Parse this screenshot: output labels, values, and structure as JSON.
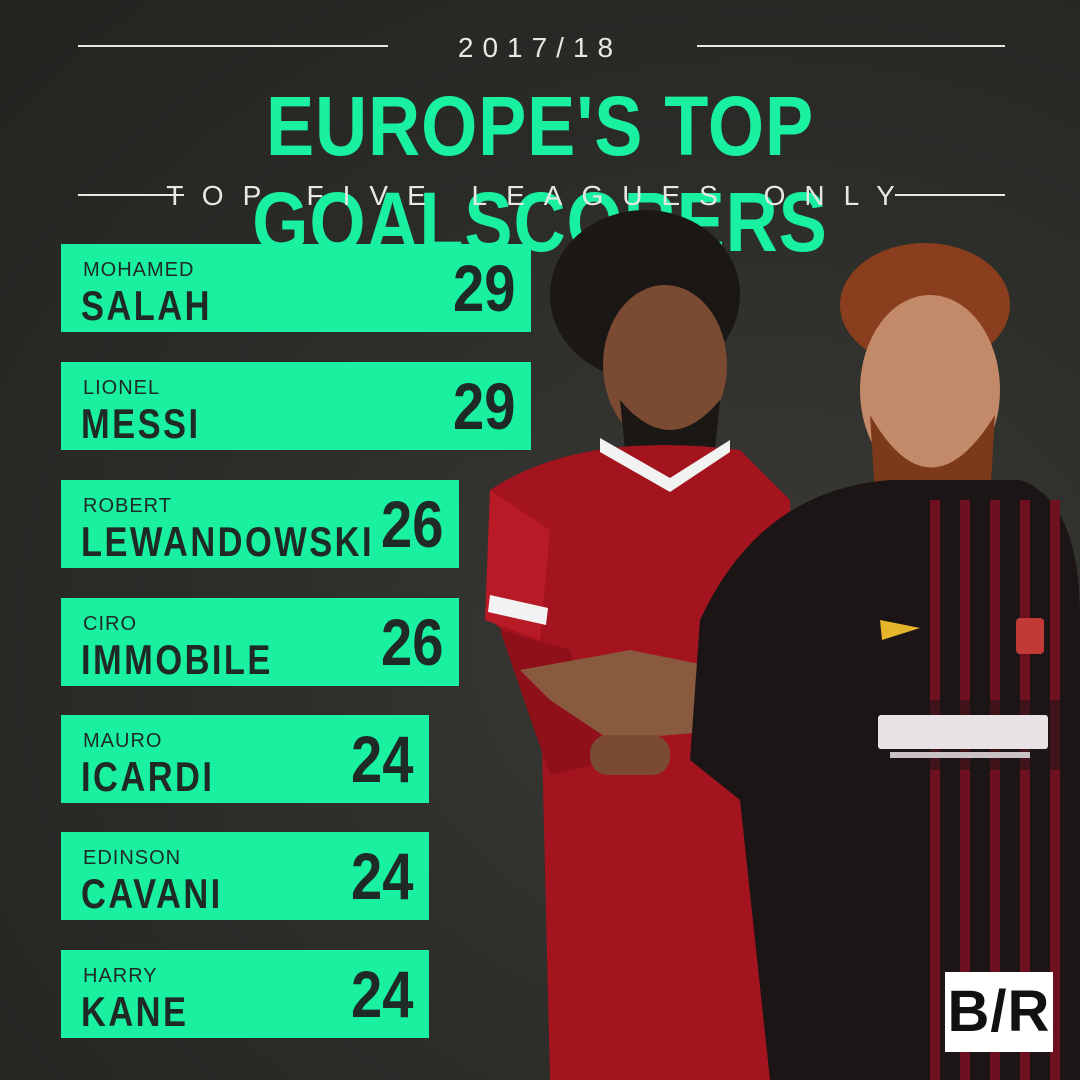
{
  "header": {
    "season": "2017/18",
    "title": "EUROPE'S TOP GOALSCORERS",
    "subtitle": "TOP FIVE LEAGUES ONLY"
  },
  "colors": {
    "accent": "#19f0a0",
    "background": "#2b2b28",
    "bar_text": "#1f2a26"
  },
  "chart_data": {
    "type": "bar",
    "orientation": "horizontal",
    "title": "EUROPE'S TOP GOALSCORERS",
    "subtitle": "TOP FIVE LEAGUES ONLY",
    "categories": [
      {
        "first": "MOHAMED",
        "last": "SALAH"
      },
      {
        "first": "LIONEL",
        "last": "MESSI"
      },
      {
        "first": "ROBERT",
        "last": "LEWANDOWSKI"
      },
      {
        "first": "CIRO",
        "last": "IMMOBILE"
      },
      {
        "first": "MAURO",
        "last": "ICARDI"
      },
      {
        "first": "EDINSON",
        "last": "CAVANI"
      },
      {
        "first": "HARRY",
        "last": "KANE"
      }
    ],
    "values": [
      29,
      29,
      26,
      26,
      24,
      24,
      24
    ]
  },
  "logo": {
    "text": "B/R"
  }
}
